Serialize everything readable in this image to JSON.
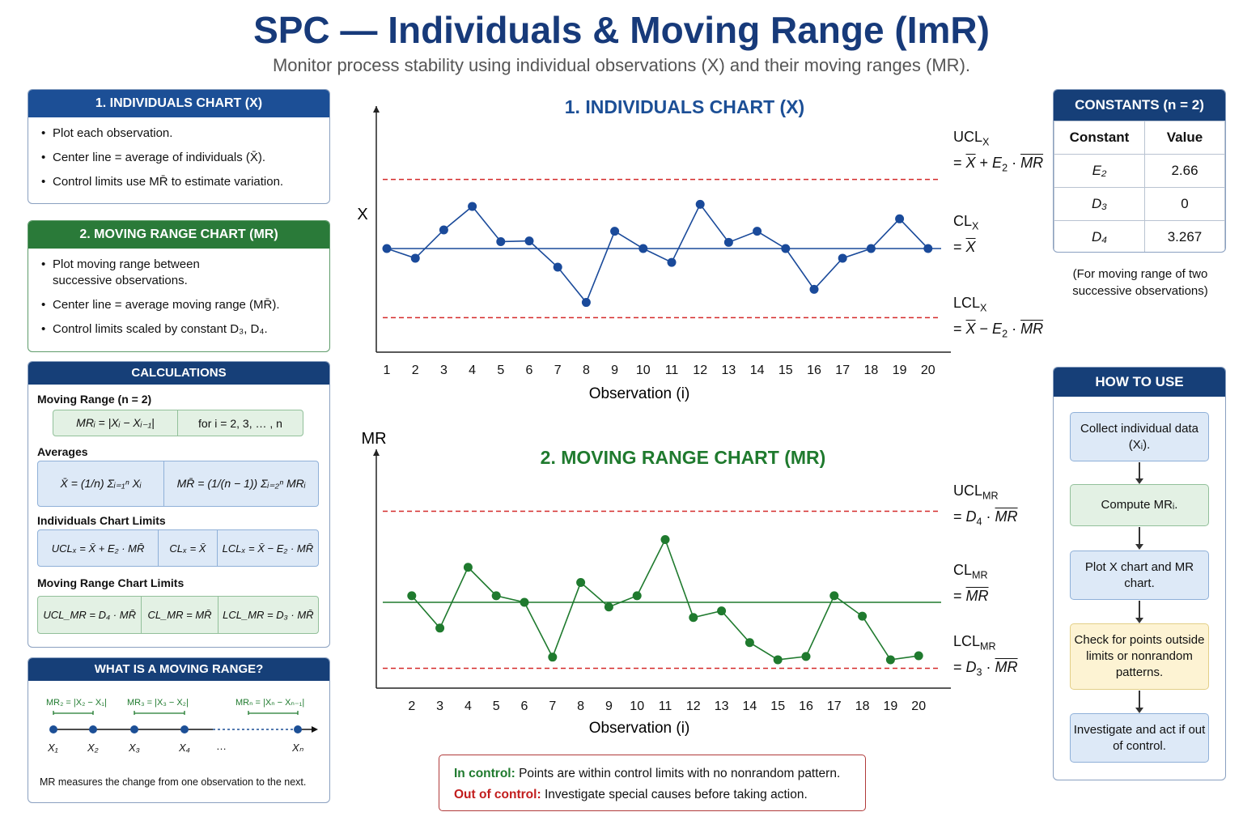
{
  "header": {
    "title": "SPC — Individuals & Moving Range (ImR)",
    "subtitle": "Monitor process stability using individual observations (X) and their moving ranges (MR)."
  },
  "individuals_panel": {
    "title": "1. INDIVIDUALS CHART (X)",
    "items": [
      "Plot each observation.",
      "Center line = average of individuals (X̄).",
      "Control limits use MR̄ to estimate variation."
    ]
  },
  "mr_panel": {
    "title": "2. MOVING RANGE CHART (MR)",
    "items": [
      "Plot moving range between successive observations.",
      "Center line = average moving range (MR̄).",
      "Control limits scaled by constant D₃, D₄."
    ]
  },
  "calculations": {
    "title": "CALCULATIONS",
    "moving_range_label": "Moving Range (n = 2)",
    "moving_range_formula": "MRᵢ = |Xᵢ − Xᵢ₋₁|",
    "moving_range_domain": "for i = 2, 3, … , n",
    "averages_label": "Averages",
    "xbar_formula": "X̄ = (1/n) Σᵢ₌₁ⁿ Xᵢ",
    "mrbar_formula": "MR̄ = (1/(n − 1)) Σᵢ₌₂ⁿ MRᵢ",
    "indiv_limits_label": "Individuals Chart Limits",
    "indiv_limits": [
      "UCLₓ = X̄ + E₂ · MR̄",
      "CLₓ = X̄",
      "LCLₓ = X̄ − E₂ · MR̄"
    ],
    "mr_limits_label": "Moving Range Chart Limits",
    "mr_limits": [
      "UCL_MR = D₄ · MR̄",
      "CL_MR = MR̄",
      "LCL_MR = D₃ · MR̄"
    ]
  },
  "what_is_mr": {
    "title": "WHAT IS A MOVING RANGE?",
    "labels": [
      "MR₂ = |X₂ − X₁|",
      "MR₃ = |X₃ − X₂|",
      "MRₙ = |Xₙ − Xₙ₋₁|"
    ],
    "points": [
      "X₁",
      "X₂",
      "X₃",
      "X₄",
      "…",
      "Xₙ"
    ],
    "note": "MR measures the change from one observation to the next."
  },
  "constants": {
    "title": "CONSTANTS (n = 2)",
    "headers": [
      "Constant",
      "Value"
    ],
    "rows": [
      [
        "E₂",
        "2.66"
      ],
      [
        "D₃",
        "0"
      ],
      [
        "D₄",
        "3.267"
      ]
    ],
    "note": "(For moving range of two successive observations)"
  },
  "how_to_use": {
    "title": "HOW TO USE",
    "steps": [
      "Collect individual data (Xᵢ).",
      "Compute MRᵢ.",
      "Plot X chart and MR chart.",
      "Check for points outside limits or nonrandom patterns.",
      "Investigate and act if out of control."
    ]
  },
  "status": {
    "in_label": "In control:",
    "in_text": "Points are within control limits with no nonrandom pattern.",
    "out_label": "Out of control:",
    "out_text": "Investigate special causes before taking action."
  },
  "chart_data": [
    {
      "type": "line",
      "title": "1. INDIVIDUALS CHART (X)",
      "xlabel": "Observation (i)",
      "ylabel": "X",
      "x": [
        1,
        2,
        3,
        4,
        5,
        6,
        7,
        8,
        9,
        10,
        11,
        12,
        13,
        14,
        15,
        16,
        17,
        18,
        19,
        20
      ],
      "values": [
        0.0,
        -0.14,
        0.27,
        0.61,
        0.1,
        0.11,
        -0.27,
        -0.78,
        0.25,
        0.0,
        -0.2,
        0.64,
        0.09,
        0.25,
        0.0,
        -0.59,
        -0.14,
        0.0,
        0.43,
        0.0
      ],
      "ylim": [
        -1.5,
        1.5
      ],
      "limits": {
        "UCL": 1.0,
        "CL": 0.0,
        "LCL": -1.0
      },
      "limit_labels": [
        "UCLX = X̄ + E₂ · MR̄",
        "CLX = X̄",
        "LCLX = X̄ − E₂ · MR̄"
      ],
      "color": "#1a4a9a",
      "limit_color": "#d42a2a"
    },
    {
      "type": "line",
      "title": "2. MOVING RANGE CHART (MR)",
      "xlabel": "Observation (i)",
      "ylabel": "MR",
      "x": [
        2,
        3,
        4,
        5,
        6,
        7,
        8,
        9,
        10,
        11,
        12,
        13,
        14,
        15,
        16,
        17,
        18,
        19,
        20
      ],
      "values": [
        0.1,
        -0.39,
        0.53,
        0.1,
        0.0,
        -0.83,
        0.3,
        -0.07,
        0.1,
        0.95,
        -0.23,
        -0.13,
        -0.61,
        -0.87,
        -0.82,
        0.1,
        -0.21,
        -0.87,
        -0.81
      ],
      "ylim": [
        -1.3,
        1.3
      ],
      "limits": {
        "UCL": 1.38,
        "CL": 0.0,
        "LCL": -1.0
      },
      "limit_labels": [
        "UCLMR = D₄ · MR̄",
        "CLMR = MR̄",
        "LCLMR = D₃ · MR̄"
      ],
      "color": "#1f7a2e",
      "limit_color": "#d42a2a"
    }
  ]
}
